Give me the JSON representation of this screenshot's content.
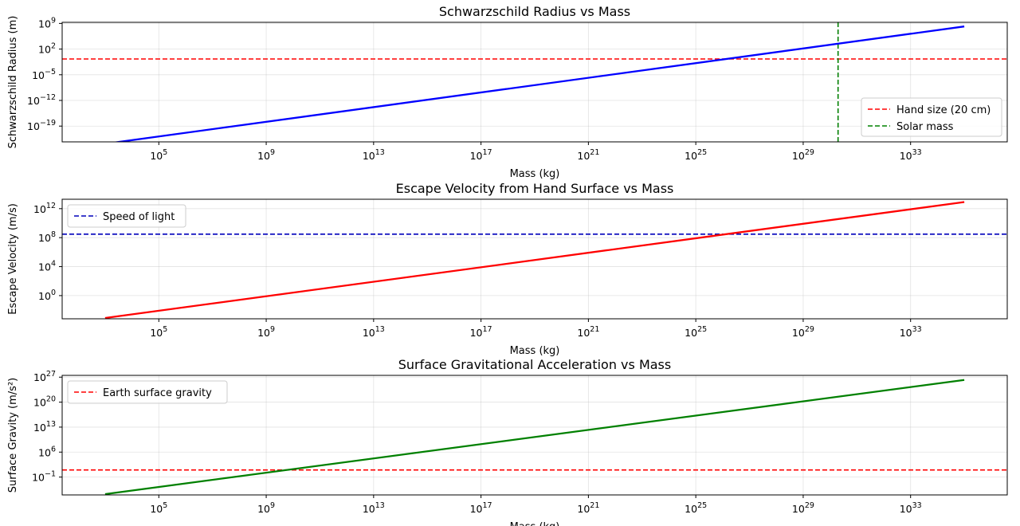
{
  "chart_data": [
    {
      "type": "line",
      "title": "Schwarzschild Radius vs Mass",
      "xlabel": "Mass (kg)",
      "ylabel": "Schwarzschild Radius (m)",
      "xscale": "log",
      "yscale": "log",
      "xlim_exp": [
        1.4,
        36.6
      ],
      "ylim_exp": [
        -23.3,
        9.3
      ],
      "xticks": [
        {
          "value": 100000.0,
          "base": "10",
          "exp": "5"
        },
        {
          "value": 1000000000.0,
          "base": "10",
          "exp": "9"
        },
        {
          "value": 10000000000000.0,
          "base": "10",
          "exp": "13"
        },
        {
          "value": 1e+17,
          "base": "10",
          "exp": "17"
        },
        {
          "value": 1e+21,
          "base": "10",
          "exp": "21"
        },
        {
          "value": 1e+25,
          "base": "10",
          "exp": "25"
        },
        {
          "value": 1e+29,
          "base": "10",
          "exp": "29"
        },
        {
          "value": 1e+33,
          "base": "10",
          "exp": "33"
        }
      ],
      "yticks": [
        {
          "value": 1e-19,
          "base": "10",
          "exp": "−19"
        },
        {
          "value": 1e-12,
          "base": "10",
          "exp": "−12"
        },
        {
          "value": 1e-05,
          "base": "10",
          "exp": "−5"
        },
        {
          "value": 100.0,
          "base": "10",
          "exp": "2"
        },
        {
          "value": 1000000000.0,
          "base": "10",
          "exp": "9"
        }
      ],
      "grid": true,
      "legend_position": "lower-right",
      "series": [
        {
          "x": [
            1000.0,
            1e+35
          ],
          "y": [
            1.485e-24,
            148500000.0
          ],
          "color": "#0000ff",
          "style": "solid"
        }
      ],
      "hlines": [
        {
          "name": "Hand size (20 cm)",
          "y": 0.2,
          "color": "#ff0000",
          "style": "dashed"
        }
      ],
      "vlines": [
        {
          "name": "Solar mass",
          "x": 1.989e+30,
          "color": "#008000",
          "style": "dashed"
        }
      ],
      "legend": [
        {
          "label": "Hand size (20 cm)",
          "color": "#ff0000"
        },
        {
          "label": "Solar mass",
          "color": "#008000"
        }
      ]
    },
    {
      "type": "line",
      "title": "Escape Velocity from Hand Surface vs Mass",
      "xlabel": "Mass (kg)",
      "ylabel": "Escape Velocity (m/s)",
      "xscale": "log",
      "yscale": "log",
      "xlim_exp": [
        1.4,
        36.6
      ],
      "ylim_exp": [
        -3.2,
        13.3
      ],
      "xticks": [
        {
          "value": 100000.0,
          "base": "10",
          "exp": "5"
        },
        {
          "value": 1000000000.0,
          "base": "10",
          "exp": "9"
        },
        {
          "value": 10000000000000.0,
          "base": "10",
          "exp": "13"
        },
        {
          "value": 1e+17,
          "base": "10",
          "exp": "17"
        },
        {
          "value": 1e+21,
          "base": "10",
          "exp": "21"
        },
        {
          "value": 1e+25,
          "base": "10",
          "exp": "25"
        },
        {
          "value": 1e+29,
          "base": "10",
          "exp": "29"
        },
        {
          "value": 1e+33,
          "base": "10",
          "exp": "33"
        }
      ],
      "yticks": [
        {
          "value": 1,
          "base": "10",
          "exp": "0"
        },
        {
          "value": 10000.0,
          "base": "10",
          "exp": "4"
        },
        {
          "value": 100000000.0,
          "base": "10",
          "exp": "8"
        },
        {
          "value": 1000000000000.0,
          "base": "10",
          "exp": "12"
        }
      ],
      "grid": true,
      "legend_position": "upper-left",
      "series": [
        {
          "x": [
            1000.0,
            1e+35
          ],
          "y": [
            0.000817,
            8170000000000.0
          ],
          "color": "#ff0000",
          "style": "solid"
        }
      ],
      "hlines": [
        {
          "name": "Speed of light",
          "y": 300000000.0,
          "color": "#0000bb",
          "style": "dashed"
        }
      ],
      "vlines": [],
      "legend": [
        {
          "label": "Speed of light",
          "color": "#0000bb"
        }
      ]
    },
    {
      "type": "line",
      "title": "Surface Gravitational Acceleration vs Mass",
      "xlabel": "Mass (kg)",
      "ylabel": "Surface Gravity (m/s²)",
      "xscale": "log",
      "yscale": "log",
      "xlim_exp": [
        1.4,
        36.6
      ],
      "ylim_exp": [
        -6.0,
        27.5
      ],
      "xticks": [
        {
          "value": 100000.0,
          "base": "10",
          "exp": "5"
        },
        {
          "value": 1000000000.0,
          "base": "10",
          "exp": "9"
        },
        {
          "value": 10000000000000.0,
          "base": "10",
          "exp": "13"
        },
        {
          "value": 1e+17,
          "base": "10",
          "exp": "17"
        },
        {
          "value": 1e+21,
          "base": "10",
          "exp": "21"
        },
        {
          "value": 1e+25,
          "base": "10",
          "exp": "25"
        },
        {
          "value": 1e+29,
          "base": "10",
          "exp": "29"
        },
        {
          "value": 1e+33,
          "base": "10",
          "exp": "33"
        }
      ],
      "yticks": [
        {
          "value": 0.1,
          "base": "10",
          "exp": "−1"
        },
        {
          "value": 1000000.0,
          "base": "10",
          "exp": "6"
        },
        {
          "value": 10000000000000.0,
          "base": "10",
          "exp": "13"
        },
        {
          "value": 1e+20,
          "base": "10",
          "exp": "20"
        },
        {
          "value": 1e+27,
          "base": "10",
          "exp": "27"
        }
      ],
      "grid": true,
      "legend_position": "upper-left",
      "series": [
        {
          "x": [
            1000.0,
            1e+35
          ],
          "y": [
            1.67e-06,
            1.67e+26
          ],
          "color": "#008000",
          "style": "solid"
        }
      ],
      "hlines": [
        {
          "name": "Earth surface gravity",
          "y": 9.81,
          "color": "#ff0000",
          "style": "dashed"
        }
      ],
      "vlines": [],
      "legend": [
        {
          "label": "Earth surface gravity",
          "color": "#ff0000"
        }
      ]
    }
  ]
}
